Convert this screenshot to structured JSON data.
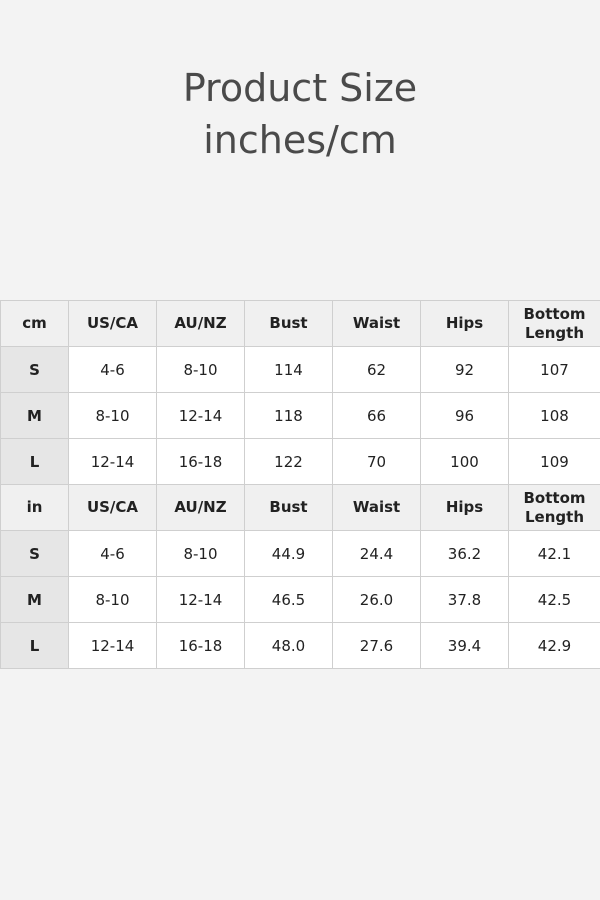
{
  "title": {
    "line1": "Product Size",
    "line2": "inches/cm"
  },
  "tables": [
    {
      "unit": "cm",
      "headers": [
        "US/CA",
        "AU/NZ",
        "Bust",
        "Waist",
        "Hips",
        "Bottom Length"
      ],
      "rows": [
        {
          "size": "S",
          "values": [
            "4-6",
            "8-10",
            "114",
            "62",
            "92",
            "107"
          ]
        },
        {
          "size": "M",
          "values": [
            "8-10",
            "12-14",
            "118",
            "66",
            "96",
            "108"
          ]
        },
        {
          "size": "L",
          "values": [
            "12-14",
            "16-18",
            "122",
            "70",
            "100",
            "109"
          ]
        }
      ]
    },
    {
      "unit": "in",
      "headers": [
        "US/CA",
        "AU/NZ",
        "Bust",
        "Waist",
        "Hips",
        "Bottom Length"
      ],
      "rows": [
        {
          "size": "S",
          "values": [
            "4-6",
            "8-10",
            "44.9",
            "24.4",
            "36.2",
            "42.1"
          ]
        },
        {
          "size": "M",
          "values": [
            "8-10",
            "12-14",
            "46.5",
            "26.0",
            "37.8",
            "42.5"
          ]
        },
        {
          "size": "L",
          "values": [
            "12-14",
            "16-18",
            "48.0",
            "27.6",
            "39.4",
            "42.9"
          ]
        }
      ]
    }
  ]
}
